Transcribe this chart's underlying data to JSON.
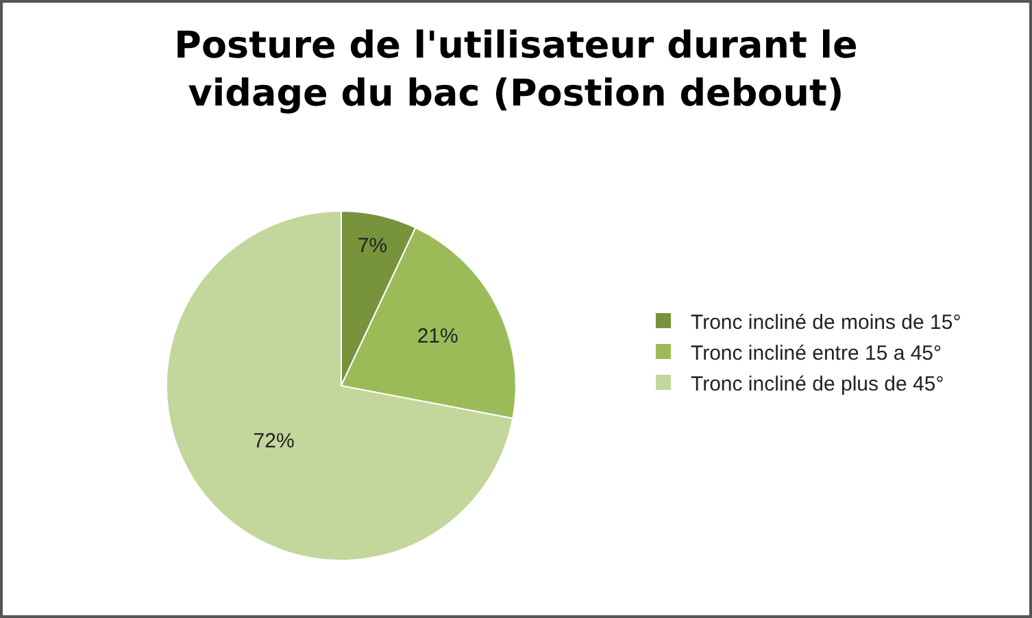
{
  "chart_data": {
    "type": "pie",
    "title": "Posture de l'utilisateur durant le vidage du bac (Postion debout)",
    "categories": [
      "Tronc incliné de moins de 15°",
      "Tronc incliné entre 15 a 45°",
      "Tronc incliné de plus de 45°"
    ],
    "values": [
      7,
      21,
      72
    ],
    "value_labels": [
      "7%",
      "21%",
      "72%"
    ],
    "colors": [
      "#77933c",
      "#9bbb59",
      "#c3d69b"
    ],
    "legend": "right"
  }
}
